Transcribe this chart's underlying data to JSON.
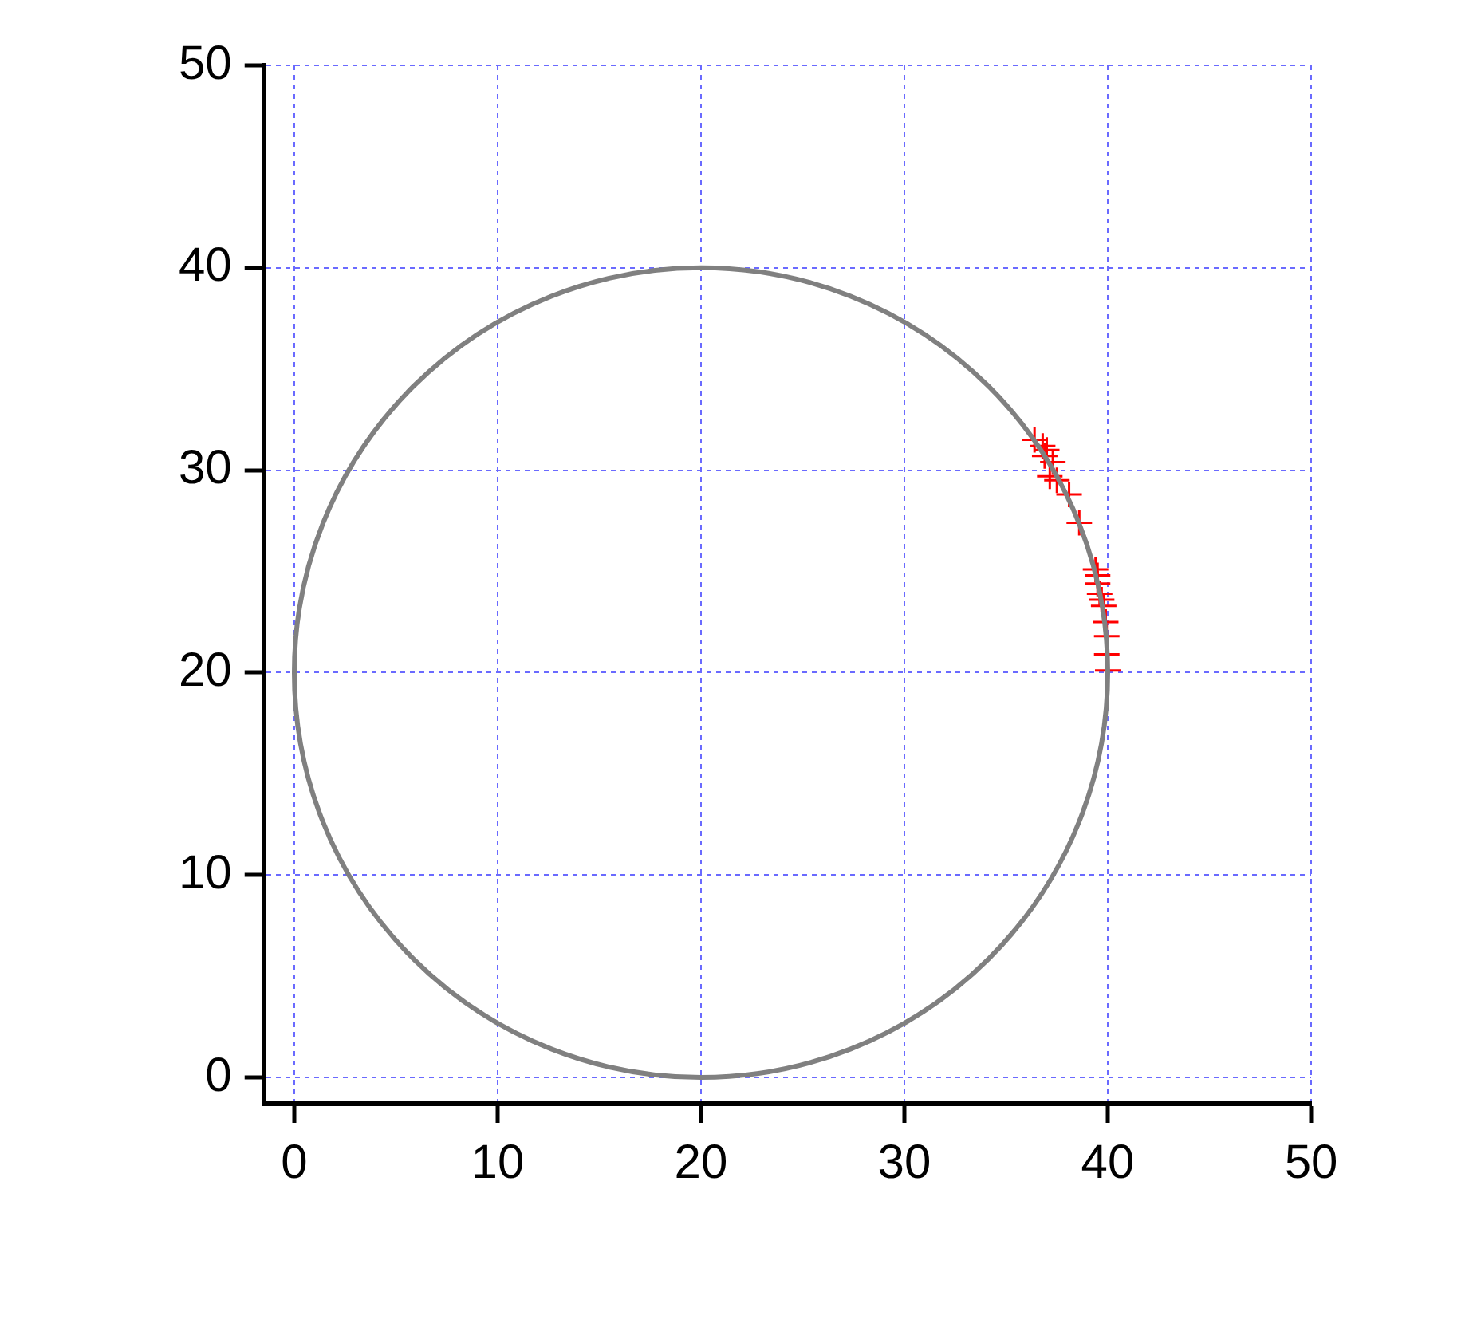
{
  "chart_data": {
    "type": "scatter",
    "xlim": [
      -1.5,
      50
    ],
    "ylim": [
      -1.3,
      50
    ],
    "xticks": [
      0,
      10,
      20,
      30,
      40,
      50
    ],
    "yticks": [
      0,
      10,
      20,
      30,
      40,
      50
    ],
    "grid": true,
    "legend": false,
    "series": [
      {
        "type": "scatter",
        "color": "#ff0000",
        "marker": "cross",
        "x": [
          36.4,
          36.8,
          37.0,
          36.9,
          37.3,
          37.15,
          37.5,
          38.1,
          38.6,
          39.4,
          39.5,
          39.5,
          39.6,
          39.7,
          39.8,
          39.9,
          39.95,
          39.95,
          40.0
        ],
        "values": [
          31.5,
          31.2,
          31.0,
          30.7,
          30.4,
          29.7,
          29.5,
          28.8,
          27.4,
          25.1,
          24.8,
          24.4,
          23.9,
          23.6,
          23.3,
          22.5,
          21.8,
          20.9,
          20.1
        ]
      }
    ]
  }
}
